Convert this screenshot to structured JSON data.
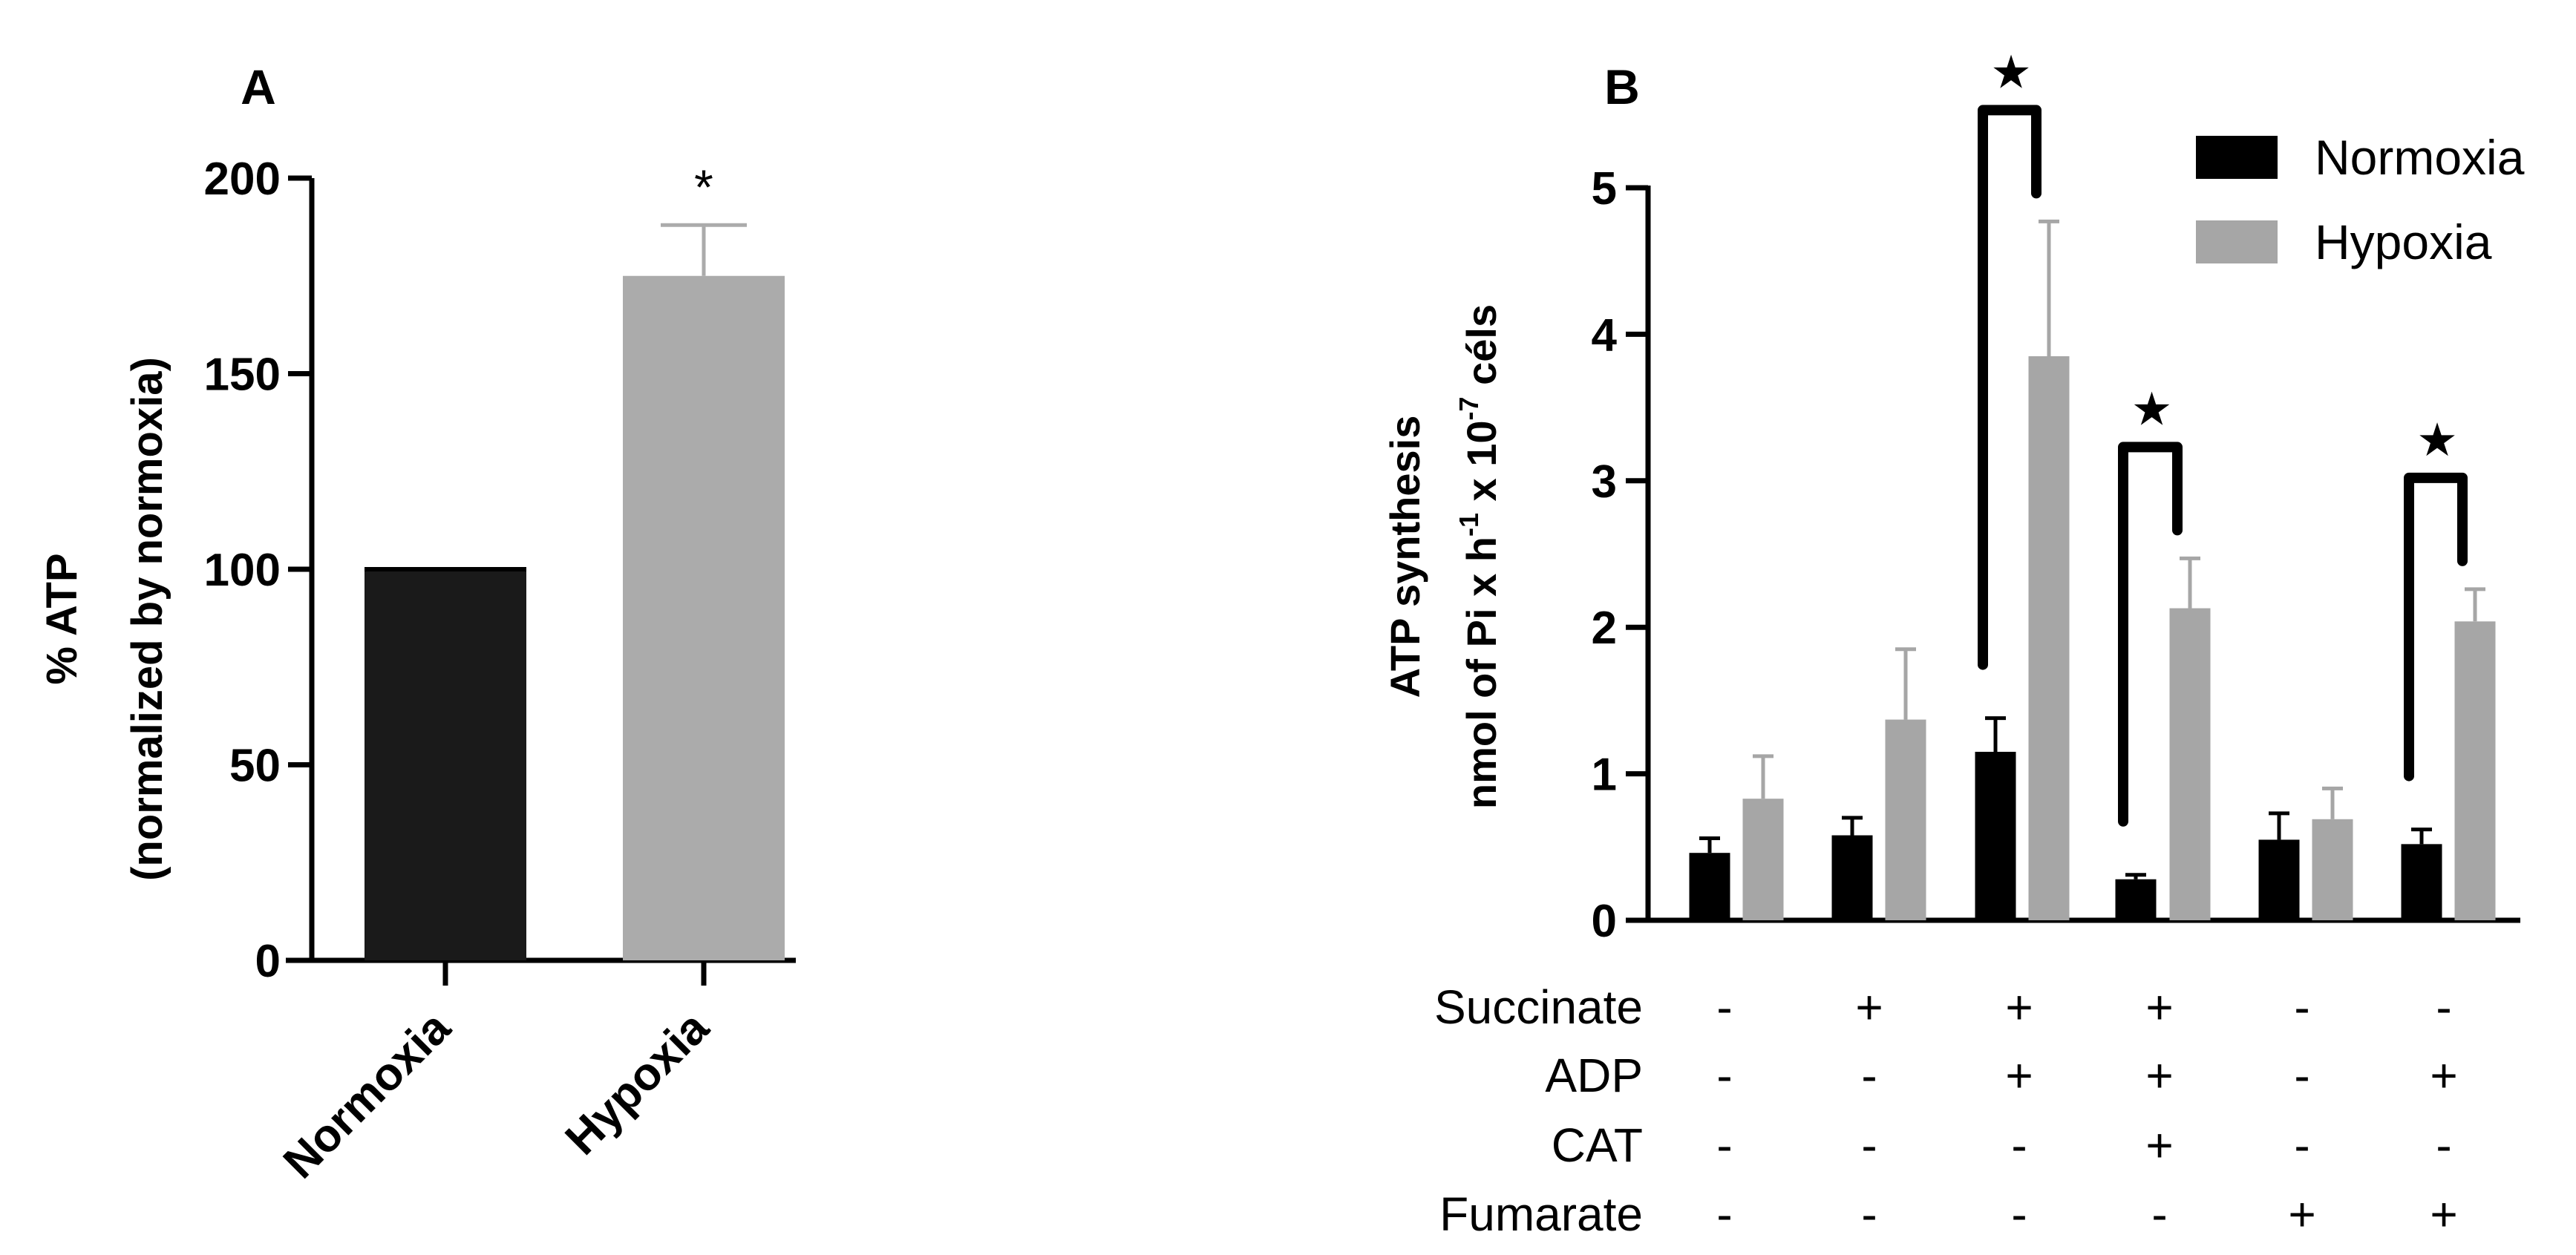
{
  "chart_data": [
    {
      "panel": "A",
      "type": "bar",
      "categories": [
        "Normoxia",
        "Hypoxia"
      ],
      "values": [
        100,
        175
      ],
      "errors": [
        0,
        13
      ],
      "colors": [
        "#1a1a1a",
        "#ababab"
      ],
      "significance": [
        "",
        "*"
      ],
      "ylabel_line1": "% ATP",
      "ylabel_line2": "(normalized by normoxia)",
      "ylim": [
        0,
        200
      ],
      "yticks": [
        0,
        50,
        100,
        150,
        200
      ]
    },
    {
      "panel": "B",
      "type": "bar",
      "ylabel_line1": "ATP synthesis",
      "ylabel_unit_base": "nmol of Pi x h",
      "ylabel_unit_exp1": "-1",
      "ylabel_unit_mid": " x 10",
      "ylabel_unit_exp2": "-7",
      "ylabel_unit_end": " céls",
      "ylim": [
        0,
        5
      ],
      "yticks": [
        0,
        1,
        2,
        3,
        4,
        5
      ],
      "series": [
        {
          "name": "Normoxia",
          "color": "#000000",
          "values": [
            0.46,
            0.58,
            1.15,
            0.28,
            0.55,
            0.52
          ],
          "errors": [
            0.1,
            0.12,
            0.23,
            0.03,
            0.18,
            0.1
          ]
        },
        {
          "name": "Hypoxia",
          "color": "#a6a6a6",
          "values": [
            0.83,
            1.37,
            3.85,
            2.13,
            0.69,
            2.04
          ],
          "errors": [
            0.29,
            0.48,
            0.92,
            0.34,
            0.21,
            0.22
          ]
        }
      ],
      "conditions": [
        {
          "name": "Succinate",
          "marks": [
            "-",
            "+",
            "+",
            "+",
            "-",
            "-"
          ]
        },
        {
          "name": "ADP",
          "marks": [
            "-",
            "-",
            "+",
            "+",
            "-",
            "+"
          ]
        },
        {
          "name": "CAT",
          "marks": [
            "-",
            "-",
            "-",
            "+",
            "-",
            "-"
          ]
        },
        {
          "name": "Fumarate",
          "marks": [
            "-",
            "-",
            "-",
            "-",
            "+",
            "+"
          ]
        }
      ],
      "significant_groups": [
        2,
        3,
        5
      ],
      "significance_symbol": "★"
    }
  ],
  "panel_labels": {
    "a": "A",
    "b": "B"
  }
}
